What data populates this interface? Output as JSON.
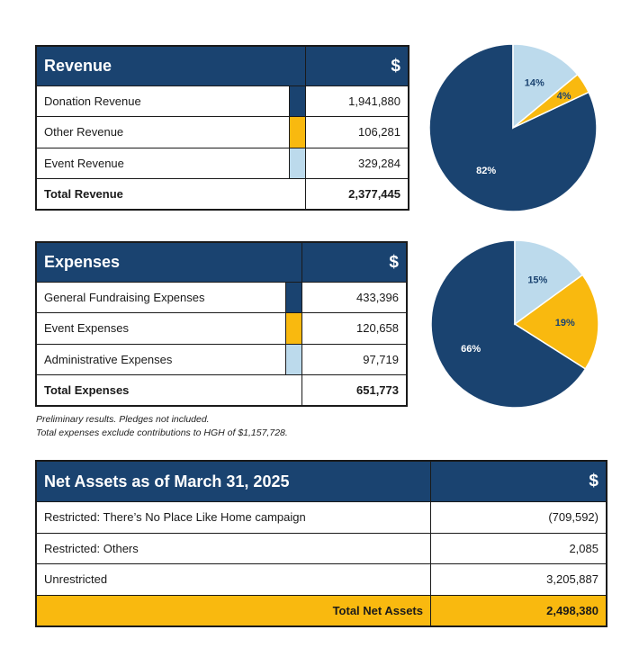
{
  "colors": {
    "navy": "#1a4370",
    "gold": "#f9b90f",
    "lightblue": "#bcdaec"
  },
  "revenue": {
    "title": "Revenue",
    "currency": "$",
    "rows": [
      {
        "label": "Donation Revenue",
        "value": "1,941,880",
        "color": "#1a4370"
      },
      {
        "label": "Other Revenue",
        "value": "106,281",
        "color": "#f9b90f"
      },
      {
        "label": "Event Revenue",
        "value": "329,284",
        "color": "#bcdaec"
      }
    ],
    "total_label": "Total Revenue",
    "total_value": "2,377,445"
  },
  "expenses": {
    "title": "Expenses",
    "currency": "$",
    "rows": [
      {
        "label": "General Fundraising Expenses",
        "value": "433,396",
        "color": "#1a4370"
      },
      {
        "label": "Event Expenses",
        "value": "120,658",
        "color": "#f9b90f"
      },
      {
        "label": "Administrative Expenses",
        "value": "97,719",
        "color": "#bcdaec"
      }
    ],
    "total_label": "Total Expenses",
    "total_value": "651,773"
  },
  "notes": {
    "line1": "Preliminary results. Pledges not included.",
    "line2": "Total expenses exclude contributions to HGH of $1,157,728."
  },
  "net_assets": {
    "title": "Net Assets as of March 31, 2025",
    "currency": "$",
    "rows": [
      {
        "label": "Restricted: There’s No Place Like Home campaign",
        "value": "(709,592)"
      },
      {
        "label": "Restricted: Others",
        "value": "2,085"
      },
      {
        "label": "Unrestricted",
        "value": "3,205,887"
      }
    ],
    "total_label": "Total Net Assets",
    "total_value": "2,498,380"
  },
  "chart_data": [
    {
      "type": "pie",
      "categories": [
        "Donation Revenue",
        "Other Revenue",
        "Event Revenue"
      ],
      "values": [
        82,
        4,
        14
      ],
      "labels": [
        "82%",
        "4%",
        "14%"
      ],
      "colors": [
        "#1a4370",
        "#f9b90f",
        "#bcdaec"
      ]
    },
    {
      "type": "pie",
      "categories": [
        "General Fundraising Expenses",
        "Event Expenses",
        "Administrative Expenses"
      ],
      "values": [
        66,
        19,
        15
      ],
      "labels": [
        "66%",
        "19%",
        "15%"
      ],
      "colors": [
        "#1a4370",
        "#f9b90f",
        "#bcdaec"
      ]
    }
  ]
}
